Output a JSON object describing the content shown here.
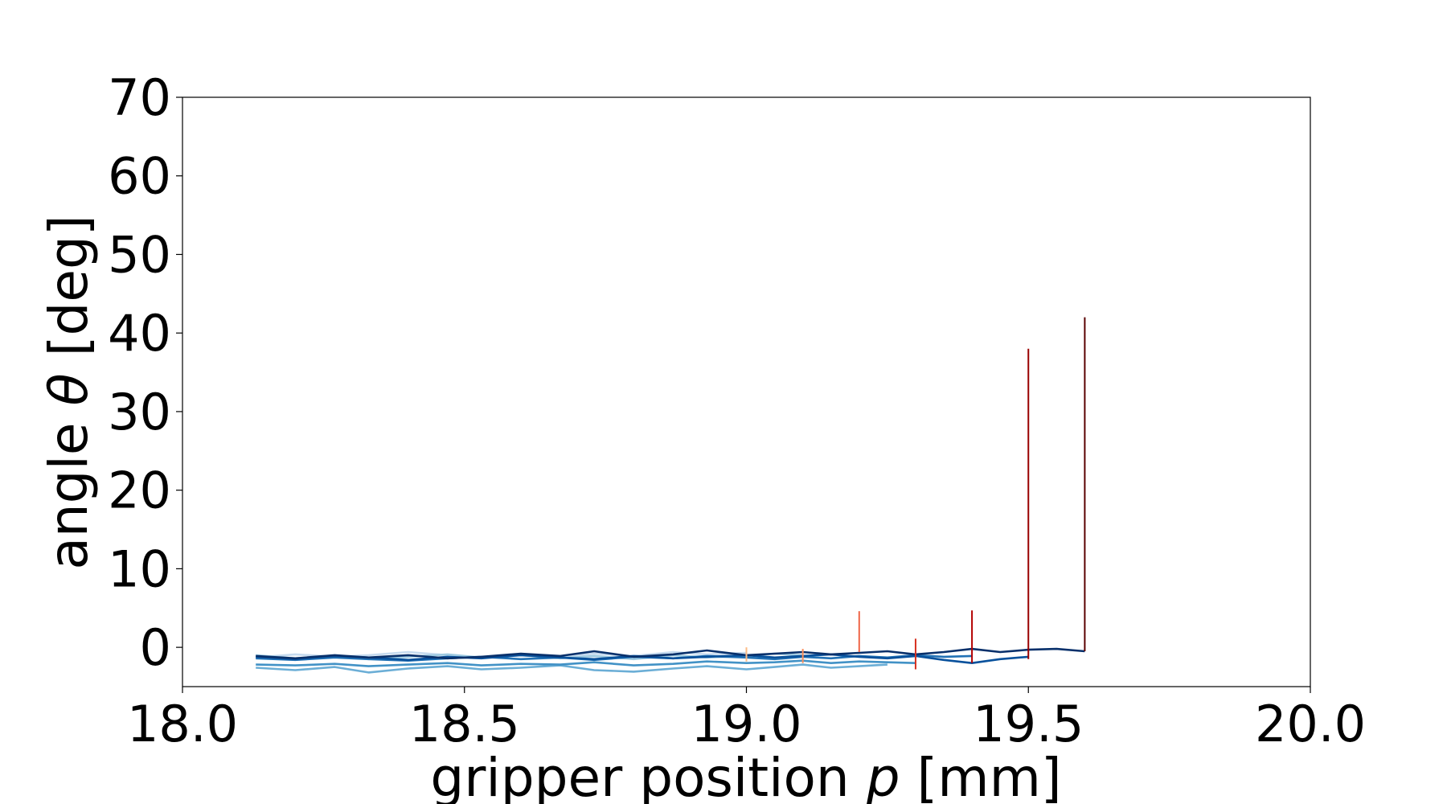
{
  "chart_data": {
    "type": "line",
    "title": "",
    "xlabel_parts": {
      "pre": "gripper position ",
      "sym": "p",
      "post": " [mm]"
    },
    "ylabel_parts": {
      "pre": "angle ",
      "sym": "θ",
      "post": " [deg]"
    },
    "xlim": [
      18.0,
      20.0
    ],
    "ylim": [
      -5,
      70
    ],
    "xticks": [
      18.0,
      18.5,
      19.0,
      19.5,
      20.0
    ],
    "xtick_labels": [
      "18.0",
      "18.5",
      "19.0",
      "19.5",
      "20.0"
    ],
    "yticks": [
      0,
      10,
      20,
      30,
      40,
      50,
      60,
      70
    ],
    "ytick_labels": [
      "0",
      "10",
      "20",
      "30",
      "40",
      "50",
      "60",
      "70"
    ],
    "grid": false,
    "legend": "none",
    "series": [
      {
        "color": "#c6dbef",
        "x": [
          18.13,
          18.2,
          18.27,
          18.33,
          18.4,
          18.47,
          18.53,
          18.6,
          18.67,
          18.73,
          18.8,
          18.87,
          18.93,
          19.0
        ],
        "y": [
          -1.3,
          -0.9,
          -1.2,
          -1.0,
          -0.6,
          -1.0,
          -1.3,
          -0.9,
          -1.2,
          -0.8,
          -1.1,
          -0.6,
          -0.9,
          -0.7
        ]
      },
      {
        "color": "#9ecae1",
        "x": [
          18.13,
          18.2,
          18.27,
          18.33,
          18.4,
          18.47,
          18.53,
          18.6,
          18.67,
          18.73,
          18.8,
          18.87,
          18.93,
          19.0,
          19.05,
          19.1
        ],
        "y": [
          -1.0,
          -1.4,
          -1.1,
          -1.5,
          -1.2,
          -0.9,
          -1.3,
          -1.0,
          -1.4,
          -1.1,
          -1.5,
          -1.0,
          -1.3,
          -1.1,
          -0.8,
          -1.0
        ]
      },
      {
        "color": "#6baed6",
        "x": [
          18.13,
          18.2,
          18.27,
          18.33,
          18.4,
          18.47,
          18.53,
          18.6,
          18.67,
          18.73,
          18.8,
          18.87,
          18.93,
          19.0,
          19.05,
          19.1,
          19.15,
          19.2,
          19.25
        ],
        "y": [
          -2.6,
          -2.9,
          -2.5,
          -3.2,
          -2.7,
          -2.4,
          -2.8,
          -2.6,
          -2.3,
          -2.9,
          -3.1,
          -2.7,
          -2.4,
          -2.8,
          -2.5,
          -2.2,
          -2.6,
          -2.4,
          -2.2
        ]
      },
      {
        "color": "#4292c6",
        "x": [
          18.13,
          18.2,
          18.27,
          18.33,
          18.4,
          18.47,
          18.53,
          18.6,
          18.67,
          18.73,
          18.8,
          18.87,
          18.93,
          19.0,
          19.05,
          19.1,
          19.15,
          19.2,
          19.25,
          19.3
        ],
        "y": [
          -2.2,
          -2.3,
          -2.1,
          -2.4,
          -2.2,
          -2.0,
          -2.3,
          -2.1,
          -2.2,
          -1.9,
          -2.3,
          -2.1,
          -1.8,
          -2.0,
          -1.9,
          -1.7,
          -2.0,
          -1.8,
          -1.9,
          -2.0
        ]
      },
      {
        "color": "#2171b5",
        "x": [
          18.13,
          18.2,
          18.27,
          18.33,
          18.4,
          18.47,
          18.53,
          18.6,
          18.67,
          18.73,
          18.8,
          18.87,
          18.93,
          19.0,
          19.05,
          19.1,
          19.15,
          19.2,
          19.25,
          19.3,
          19.35,
          19.4
        ],
        "y": [
          -1.4,
          -1.6,
          -1.3,
          -1.5,
          -1.7,
          -1.4,
          -1.2,
          -1.5,
          -1.3,
          -1.6,
          -1.2,
          -1.4,
          -1.1,
          -1.3,
          -1.5,
          -1.2,
          -1.4,
          -1.1,
          -1.3,
          -1.0,
          -1.2,
          -1.1
        ]
      },
      {
        "color": "#08519c",
        "x": [
          18.13,
          18.2,
          18.27,
          18.33,
          18.4,
          18.47,
          18.53,
          18.6,
          18.67,
          18.73,
          18.8,
          18.87,
          18.93,
          19.0,
          19.05,
          19.1,
          19.15,
          19.2,
          19.25,
          19.3,
          19.35,
          19.4,
          19.45,
          19.5
        ],
        "y": [
          -1.2,
          -1.5,
          -1.1,
          -1.3,
          -1.6,
          -1.2,
          -1.4,
          -1.0,
          -1.3,
          -1.5,
          -1.1,
          -1.4,
          -1.2,
          -1.0,
          -1.3,
          -1.1,
          -0.9,
          -1.2,
          -1.4,
          -1.1,
          -1.6,
          -2.0,
          -1.5,
          -1.2
        ]
      },
      {
        "color": "#08306b",
        "x": [
          18.13,
          18.2,
          18.27,
          18.33,
          18.4,
          18.47,
          18.53,
          18.6,
          18.67,
          18.73,
          18.8,
          18.87,
          18.93,
          19.0,
          19.05,
          19.1,
          19.15,
          19.2,
          19.25,
          19.3,
          19.35,
          19.4,
          19.45,
          19.5,
          19.55,
          19.6
        ],
        "y": [
          -1.1,
          -1.4,
          -1.0,
          -1.3,
          -1.0,
          -1.4,
          -1.2,
          -0.8,
          -1.1,
          -0.5,
          -1.2,
          -0.9,
          -0.4,
          -1.0,
          -0.8,
          -0.6,
          -0.9,
          -0.7,
          -0.5,
          -0.9,
          -0.6,
          -0.2,
          -0.6,
          -0.3,
          -0.2,
          -0.5
        ]
      }
    ],
    "vlines": [
      {
        "x": 19.0,
        "ymin": -1.8,
        "ymax": 0.0,
        "color": "#fdbb84"
      },
      {
        "x": 19.1,
        "ymin": -2.0,
        "ymax": -0.2,
        "color": "#fc8d59"
      },
      {
        "x": 19.2,
        "ymin": -0.6,
        "ymax": 4.6,
        "color": "#ef6548"
      },
      {
        "x": 19.3,
        "ymin": -2.8,
        "ymax": 1.1,
        "color": "#d7301f"
      },
      {
        "x": 19.4,
        "ymin": -2.0,
        "ymax": 4.7,
        "color": "#b30000"
      },
      {
        "x": 19.5,
        "ymin": -1.5,
        "ymax": 38.0,
        "color": "#990000"
      },
      {
        "x": 19.6,
        "ymin": -0.5,
        "ymax": 42.0,
        "color": "#5a0000"
      }
    ]
  }
}
